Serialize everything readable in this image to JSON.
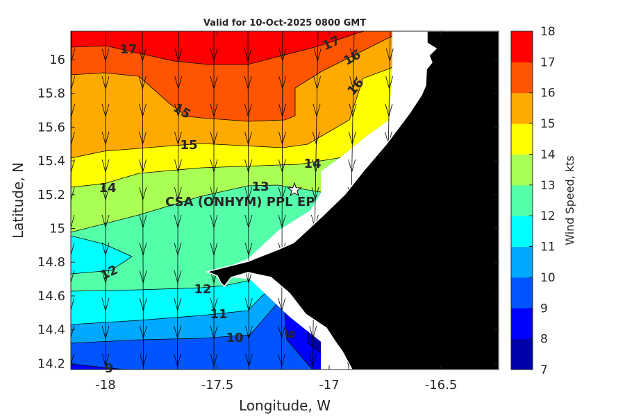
{
  "chart_data": {
    "type": "heatmap",
    "subtype": "filled-contour map with wind vectors",
    "title": "Valid for 10-Oct-2025 0800 GMT",
    "xlabel": "Longitude, W",
    "ylabel": "Latitude, N",
    "xlim": [
      -18.15,
      -16.24
    ],
    "ylim": [
      14.16,
      16.17
    ],
    "xticks": [
      "-18",
      "-17.5",
      "-17",
      "-16.5"
    ],
    "yticks": [
      "16",
      "15.8",
      "15.6",
      "15.4",
      "15.2",
      "15",
      "14.8",
      "14.6",
      "14.4",
      "14.2"
    ],
    "colorbar": {
      "label": "Wind Speed, kts",
      "ticks": [
        "7",
        "8",
        "9",
        "10",
        "11",
        "12",
        "13",
        "14",
        "15",
        "16",
        "17",
        "18"
      ],
      "range": [
        7,
        18
      ]
    },
    "levels": [
      7,
      8,
      9,
      10,
      11,
      12,
      13,
      14,
      15,
      16,
      17,
      18
    ],
    "band_colors": [
      "#0000a8",
      "#0000ff",
      "#0055ff",
      "#00a8ff",
      "#00ffff",
      "#55ffaa",
      "#aaff55",
      "#ffff00",
      "#ffaa00",
      "#ff5500",
      "#ff0000"
    ],
    "contour_labels": [
      "17",
      "17",
      "16",
      "16",
      "15",
      "15",
      "14",
      "14",
      "13",
      "12",
      "12",
      "11",
      "10",
      "9",
      "9"
    ],
    "wind_direction": "from north (southward arrows)",
    "marker": {
      "label": "CSA (ONHYM) PPL EP",
      "symbol": "star",
      "lon": -17.12,
      "lat": 15.23
    },
    "land_color": "#000000"
  }
}
